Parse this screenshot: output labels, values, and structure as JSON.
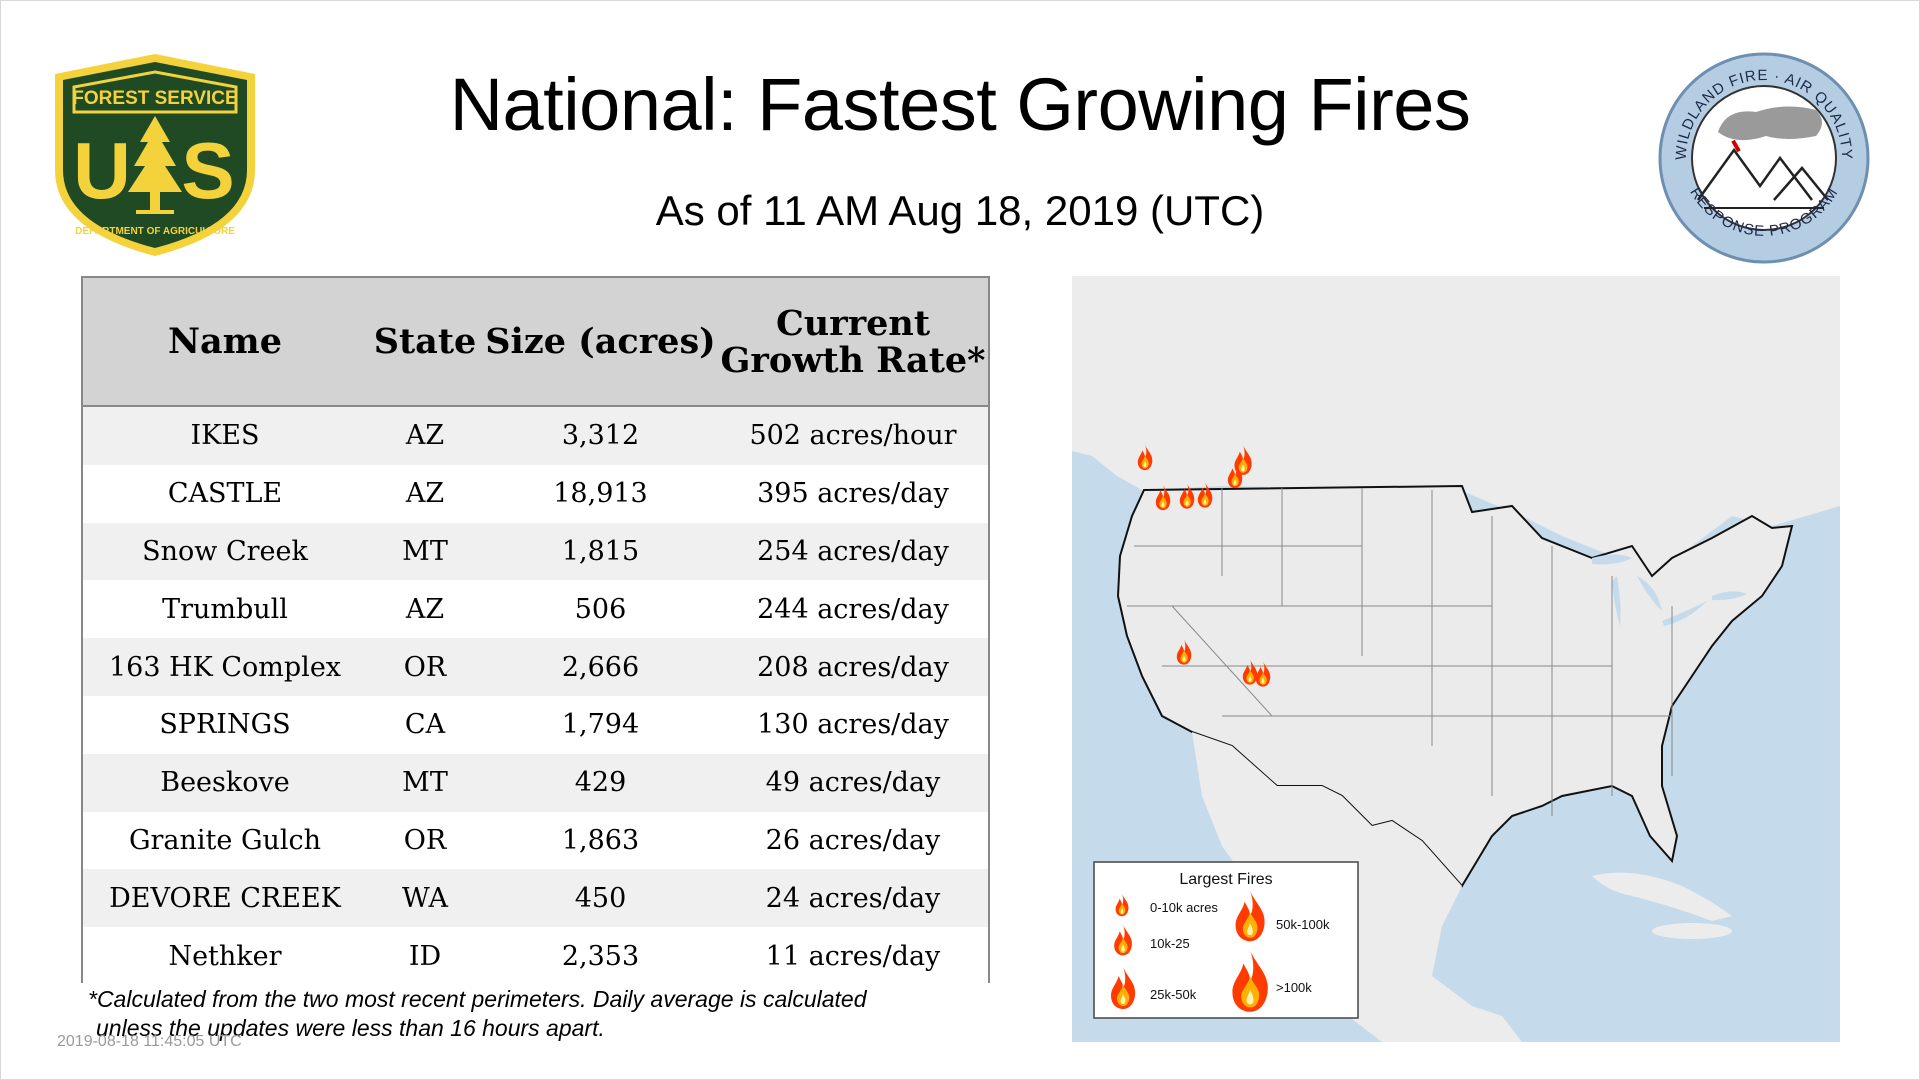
{
  "header": {
    "title": "National: Fastest Growing Fires",
    "subtitle": "As of 11 AM Aug 18, 2019 (UTC)"
  },
  "logos": {
    "forest_service": {
      "top_text": "FOREST SERVICE",
      "bottom_text": "DEPARTMENT OF AGRICULTURE",
      "left_letter": "U",
      "right_letter": "S",
      "colors": {
        "green": "#1f4a23",
        "gold": "#f4d23c"
      }
    },
    "wildland": {
      "top_text": "WILDLAND FIRE · AIR QUALITY",
      "bottom_text": "RESPONSE PROGRAM",
      "colors": {
        "ring": "#b5cde2",
        "border": "#6d8fb1"
      }
    }
  },
  "table": {
    "headers": {
      "name": "Name",
      "state": "State",
      "size": "Size (acres)",
      "rate": "Current Growth Rate*"
    },
    "rows": [
      {
        "name": "IKES",
        "state": "AZ",
        "size": "3,312",
        "rate": "502 acres/hour"
      },
      {
        "name": "CASTLE",
        "state": "AZ",
        "size": "18,913",
        "rate": "395 acres/day"
      },
      {
        "name": "Snow Creek",
        "state": "MT",
        "size": "1,815",
        "rate": "254 acres/day"
      },
      {
        "name": "Trumbull",
        "state": "AZ",
        "size": "506",
        "rate": "244 acres/day"
      },
      {
        "name": "163 HK Complex",
        "state": "OR",
        "size": "2,666",
        "rate": "208 acres/day"
      },
      {
        "name": "SPRINGS",
        "state": "CA",
        "size": "1,794",
        "rate": "130 acres/day"
      },
      {
        "name": "Beeskove",
        "state": "MT",
        "size": "429",
        "rate": "49 acres/day"
      },
      {
        "name": "Granite Gulch",
        "state": "OR",
        "size": "1,863",
        "rate": "26 acres/day"
      },
      {
        "name": "DEVORE CREEK",
        "state": "WA",
        "size": "450",
        "rate": "24 acres/day"
      },
      {
        "name": "Nethker",
        "state": "ID",
        "size": "2,353",
        "rate": "11 acres/day"
      }
    ]
  },
  "footnote": {
    "line1": "*Calculated from the two most recent perimeters. Daily average is calculated",
    "line2": "unless the updates were less than 16 hours apart."
  },
  "timestamp": "2019-08-18 11:45:05 UTC",
  "map": {
    "legend": {
      "title": "Largest Fires",
      "items": [
        "0-10k acres",
        "10k-25",
        "25k-50k",
        "50k-100k",
        ">100k"
      ]
    },
    "colors": {
      "ocean": "#c5dbec",
      "land": "#ececec",
      "us_land": "#ebebeb",
      "fire_outer": "#ff3b00",
      "fire_inner": "#ffb000"
    }
  }
}
